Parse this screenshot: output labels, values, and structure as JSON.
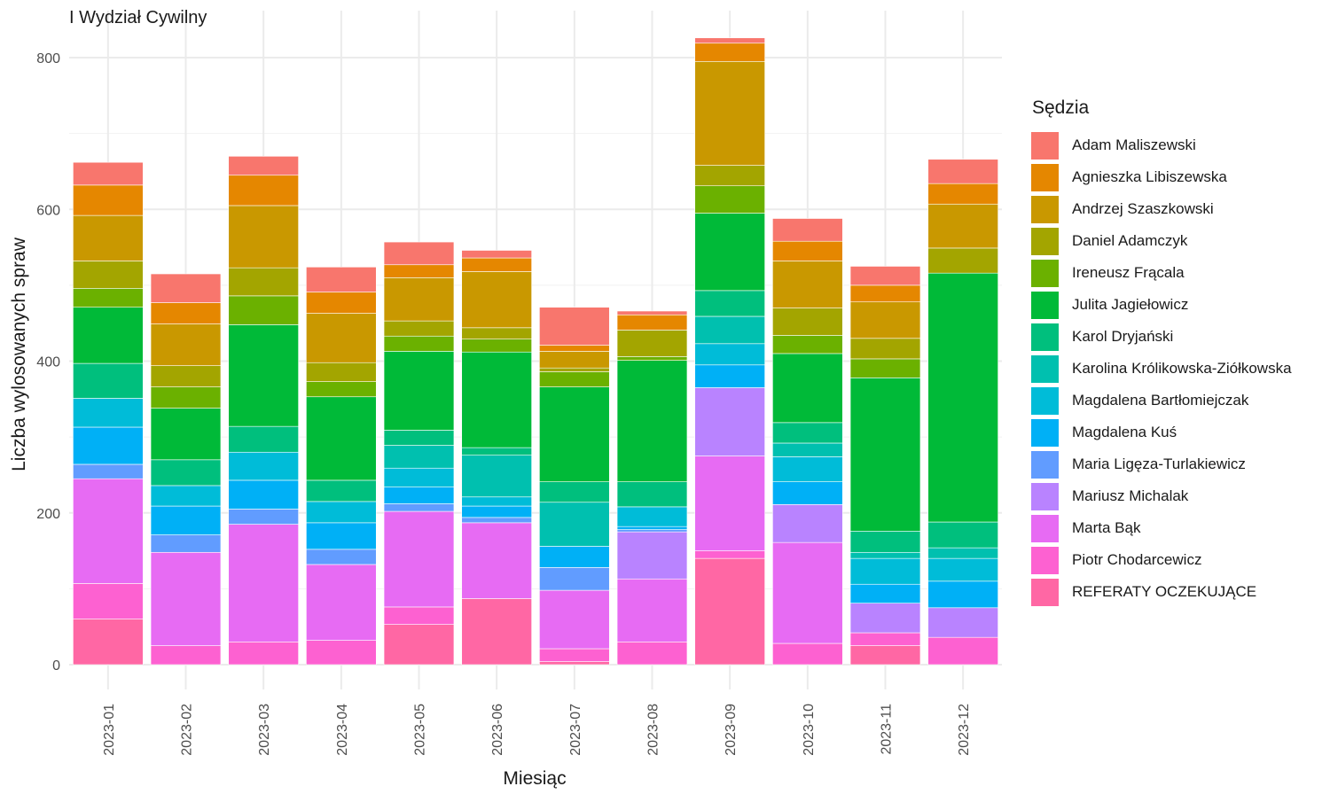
{
  "chart_data": {
    "type": "bar",
    "stacked": true,
    "title": "I Wydział Cywilny",
    "xlabel": "Miesiąc",
    "ylabel": "Liczba wylosowanych spraw",
    "ylim": [
      0,
      820
    ],
    "yticks": [
      0,
      200,
      400,
      600,
      800
    ],
    "grid": true,
    "legend_title": "Sędzia",
    "legend_position": "right",
    "categories": [
      "2023-01",
      "2023-02",
      "2023-03",
      "2023-04",
      "2023-05",
      "2023-06",
      "2023-07",
      "2023-08",
      "2023-09",
      "2023-10",
      "2023-11",
      "2023-12"
    ],
    "series": [
      {
        "name": "Adam Maliszewski",
        "color": "#F8766D",
        "values": [
          30,
          38,
          25,
          33,
          30,
          10,
          50,
          5,
          7,
          30,
          25,
          32
        ]
      },
      {
        "name": "Agnieszka Libiszewska",
        "color": "#E58700",
        "values": [
          40,
          28,
          40,
          28,
          17,
          18,
          8,
          20,
          24,
          26,
          22,
          27
        ]
      },
      {
        "name": "Andrzej Szaszkowski",
        "color": "#C99800",
        "values": [
          60,
          55,
          82,
          65,
          57,
          74,
          22,
          0,
          137,
          62,
          48,
          58
        ]
      },
      {
        "name": "Daniel Adamczyk",
        "color": "#A3A500",
        "values": [
          36,
          28,
          37,
          25,
          20,
          15,
          5,
          35,
          27,
          36,
          27,
          33
        ]
      },
      {
        "name": "Ireneusz Frącala",
        "color": "#6BB100",
        "values": [
          25,
          28,
          38,
          20,
          20,
          17,
          20,
          5,
          36,
          24,
          25,
          0
        ]
      },
      {
        "name": "Julita Jagiełowicz",
        "color": "#00BA38",
        "values": [
          74,
          68,
          134,
          110,
          104,
          126,
          125,
          160,
          102,
          91,
          202,
          328
        ]
      },
      {
        "name": "Karol Dryjański",
        "color": "#00BF7D",
        "values": [
          46,
          34,
          34,
          28,
          20,
          10,
          27,
          33,
          34,
          27,
          28,
          34
        ]
      },
      {
        "name": "Karolina Królikowska-Ziółkowska",
        "color": "#00C0AF",
        "values": [
          0,
          0,
          0,
          0,
          30,
          55,
          58,
          0,
          36,
          18,
          8,
          14
        ]
      },
      {
        "name": "Magdalena Bartłomiejczak",
        "color": "#00BCD8",
        "values": [
          38,
          27,
          37,
          28,
          25,
          12,
          0,
          26,
          28,
          33,
          34,
          30
        ]
      },
      {
        "name": "Magdalena Kuś",
        "color": "#00B0F6",
        "values": [
          49,
          38,
          38,
          35,
          22,
          15,
          28,
          4,
          30,
          30,
          25,
          35
        ]
      },
      {
        "name": "Maria Ligęza-Turlakiewicz",
        "color": "#619CFF",
        "values": [
          19,
          23,
          20,
          20,
          10,
          7,
          30,
          3,
          0,
          0,
          0,
          0
        ]
      },
      {
        "name": "Mariusz Michalak",
        "color": "#B983FF",
        "values": [
          0,
          0,
          0,
          0,
          0,
          0,
          0,
          62,
          90,
          50,
          39,
          39
        ]
      },
      {
        "name": "Marta Bąk",
        "color": "#E76BF3",
        "values": [
          138,
          123,
          155,
          100,
          126,
          100,
          77,
          83,
          125,
          133,
          0,
          0
        ]
      },
      {
        "name": "Piotr Chodarcewicz",
        "color": "#FD61D1",
        "values": [
          47,
          25,
          30,
          32,
          23,
          0,
          17,
          30,
          10,
          28,
          17,
          36
        ]
      },
      {
        "name": "REFERATY OCZEKUJĄCE",
        "color": "#FF67A4",
        "values": [
          60,
          0,
          0,
          0,
          53,
          87,
          4,
          0,
          140,
          0,
          25,
          0
        ]
      }
    ]
  }
}
